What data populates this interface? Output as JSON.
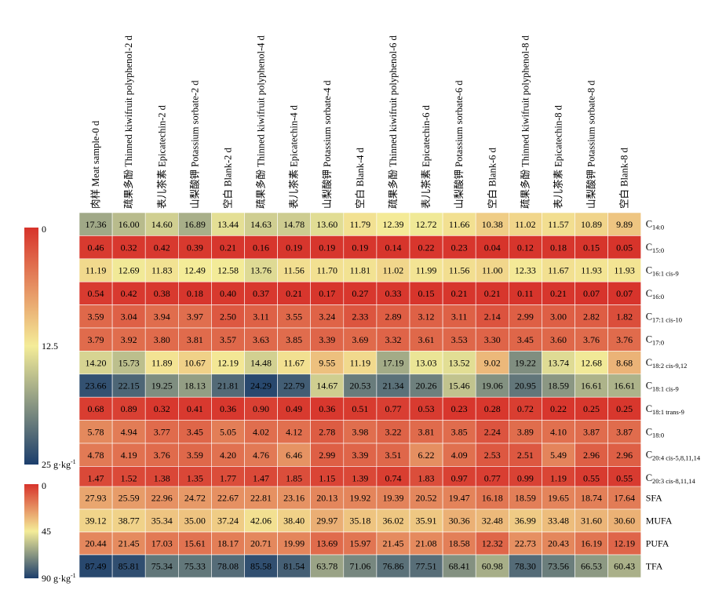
{
  "colorscale": {
    "low": "#d7332b",
    "mid": "#f4ec98",
    "high": "#1c3e6c"
  },
  "chart_data": [
    {
      "type": "heatmap",
      "columns": [
        "肉样 Meat sample-0 d",
        "疏果多酚 Thinned kiwifruit polyphenol-2 d",
        "表儿茶素 Epicatechin-2 d",
        "山梨酸钾 Potassium sorbate-2 d",
        "空白 Blank-2 d",
        "疏果多酚 Thinned kiwifruit polyphenol-4 d",
        "表儿茶素 Epicatechin-4 d",
        "山梨酸钾 Potassium sorbate-4 d",
        "空白 Blank-4 d",
        "疏果多酚 Thinned kiwifruit polyphenol-6 d",
        "表儿茶素 Epicatechin-6 d",
        "山梨酸钾 Potassium sorbate-6 d",
        "空白 Blank-6 d",
        "疏果多酚 Thinned kiwifruit polyphenol-8 d",
        "表儿茶素 Epicatechin-8 d",
        "山梨酸钾 Potassium sorbate-8 d",
        "空白 Blank-8 d"
      ],
      "rows": [
        {
          "base": "C",
          "sub": "14:0",
          "values": [
            17.36,
            16.0,
            14.6,
            16.89,
            13.44,
            14.63,
            14.78,
            13.6,
            11.79,
            12.39,
            12.72,
            11.66,
            10.38,
            11.02,
            11.57,
            10.89,
            9.89
          ]
        },
        {
          "base": "C",
          "sub": "15:0",
          "values": [
            0.46,
            0.32,
            0.42,
            0.39,
            0.21,
            0.16,
            0.19,
            0.19,
            0.19,
            0.14,
            0.22,
            0.23,
            0.04,
            0.12,
            0.18,
            0.15,
            0.05
          ]
        },
        {
          "base": "C",
          "sub": "16:1 cis-9",
          "values": [
            11.19,
            12.69,
            11.83,
            12.49,
            12.58,
            13.76,
            11.56,
            11.7,
            11.81,
            11.02,
            11.99,
            11.56,
            11.0,
            12.33,
            11.67,
            11.93,
            11.93
          ]
        },
        {
          "base": "C",
          "sub": "16:0",
          "values": [
            0.54,
            0.42,
            0.38,
            0.18,
            0.4,
            0.37,
            0.21,
            0.17,
            0.27,
            0.33,
            0.15,
            0.21,
            0.21,
            0.11,
            0.21,
            0.07,
            0.07
          ]
        },
        {
          "base": "C",
          "sub": "17:1 cis-10",
          "values": [
            3.59,
            3.04,
            3.94,
            3.97,
            2.5,
            3.11,
            3.55,
            3.24,
            2.33,
            2.89,
            3.12,
            3.11,
            2.14,
            2.99,
            3.0,
            2.82,
            1.82
          ]
        },
        {
          "base": "C",
          "sub": "17:0",
          "values": [
            3.79,
            3.92,
            3.8,
            3.81,
            3.57,
            3.63,
            3.85,
            3.39,
            3.69,
            3.32,
            3.61,
            3.53,
            3.3,
            3.45,
            3.6,
            3.76,
            3.76
          ]
        },
        {
          "base": "C",
          "sub": "18:2 cis-9,12",
          "values": [
            14.2,
            15.73,
            11.89,
            10.67,
            12.19,
            14.48,
            11.67,
            9.55,
            11.19,
            17.19,
            13.03,
            13.52,
            9.02,
            19.22,
            13.74,
            12.68,
            8.68
          ]
        },
        {
          "base": "C",
          "sub": "18:1 cis-9",
          "values": [
            23.66,
            22.15,
            19.25,
            18.13,
            21.81,
            24.29,
            22.79,
            14.67,
            20.53,
            21.34,
            20.26,
            15.46,
            19.06,
            20.95,
            18.59,
            16.61,
            16.61
          ]
        },
        {
          "base": "C",
          "sub": "18:1 trans-9",
          "values": [
            0.68,
            0.89,
            0.32,
            0.41,
            0.36,
            0.9,
            0.49,
            0.36,
            0.51,
            0.77,
            0.53,
            0.23,
            0.28,
            0.72,
            0.22,
            0.25,
            0.25
          ]
        },
        {
          "base": "C",
          "sub": "18:0",
          "values": [
            5.78,
            4.94,
            3.77,
            3.45,
            5.05,
            4.02,
            4.12,
            2.78,
            3.98,
            3.22,
            3.81,
            3.85,
            2.24,
            3.89,
            4.1,
            3.87,
            3.87
          ]
        },
        {
          "base": "C",
          "sub": "20:4 cis-5,8,11,14",
          "values": [
            4.78,
            4.19,
            3.76,
            3.59,
            4.2,
            4.76,
            6.46,
            2.99,
            3.39,
            3.51,
            6.22,
            4.09,
            2.53,
            2.51,
            5.49,
            2.96,
            2.96
          ]
        },
        {
          "base": "C",
          "sub": "20:3 cis-8,11,14",
          "values": [
            1.47,
            1.52,
            1.38,
            1.35,
            1.77,
            1.47,
            1.85,
            1.15,
            1.39,
            0.74,
            1.83,
            0.97,
            0.77,
            0.99,
            1.19,
            0.55,
            0.55
          ]
        }
      ],
      "colorbar": {
        "min": 0,
        "max": 25,
        "reversed": true,
        "tick_top": "0",
        "tick_mid": "12.5",
        "tick_bottom": "25 g·kg⁻¹"
      }
    },
    {
      "type": "heatmap",
      "rows": [
        {
          "label": "SFA",
          "values": [
            27.93,
            25.59,
            22.96,
            24.72,
            22.67,
            22.81,
            23.16,
            20.13,
            19.92,
            19.39,
            20.52,
            19.47,
            16.18,
            18.59,
            19.65,
            18.74,
            17.64
          ]
        },
        {
          "label": "MUFA",
          "values": [
            39.12,
            38.77,
            35.34,
            35.0,
            37.24,
            42.06,
            38.4,
            29.97,
            35.18,
            36.02,
            35.91,
            30.36,
            32.48,
            36.99,
            33.48,
            31.6,
            30.6
          ]
        },
        {
          "label": "PUFA",
          "values": [
            20.44,
            21.45,
            17.03,
            15.61,
            18.17,
            20.71,
            19.99,
            13.69,
            15.97,
            21.45,
            21.08,
            18.58,
            12.32,
            22.73,
            20.43,
            16.19,
            12.19
          ]
        },
        {
          "label": "TFA",
          "values": [
            87.49,
            85.81,
            75.34,
            75.33,
            78.08,
            85.58,
            81.54,
            63.78,
            71.06,
            76.86,
            77.51,
            68.41,
            60.98,
            78.3,
            73.56,
            66.53,
            60.43
          ]
        }
      ],
      "colorbar": {
        "min": 0,
        "max": 90,
        "reversed": true,
        "tick_top": "0",
        "tick_mid": "45",
        "tick_bottom": "90 g·kg⁻¹"
      }
    }
  ]
}
